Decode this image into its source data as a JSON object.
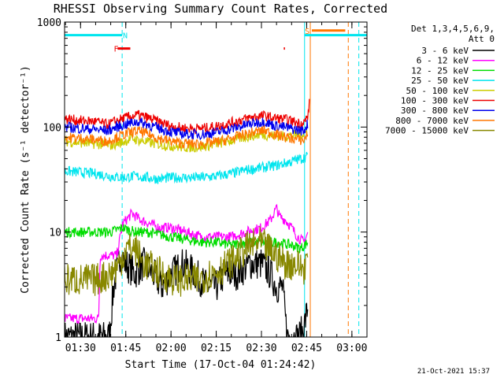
{
  "chart_data": {
    "type": "line",
    "title": "RHESSI Observing Summary Count Rates, Corrected",
    "xlabel": "Start Time (17-Oct-04 01:24:42)",
    "ylabel": "Corrected Count Rate (s⁻¹ detector⁻¹)",
    "ylog": true,
    "ylim": [
      1,
      1000
    ],
    "xlim_minutes": [
      84.7,
      185
    ],
    "x_ticks": [
      {
        "m": 90,
        "label": "01:30"
      },
      {
        "m": 105,
        "label": "01:45"
      },
      {
        "m": 120,
        "label": "02:00"
      },
      {
        "m": 135,
        "label": "02:15"
      },
      {
        "m": 150,
        "label": "02:30"
      },
      {
        "m": 165,
        "label": "02:45"
      },
      {
        "m": 180,
        "label": "03:00"
      }
    ],
    "y_ticks": [
      {
        "v": 1,
        "label": "1"
      },
      {
        "v": 10,
        "label": "10"
      },
      {
        "v": 100,
        "label": "100"
      },
      {
        "v": 1000,
        "label": "1000"
      }
    ],
    "legend_header": [
      "Det 1,3,4,5,6,9,",
      "Att 0"
    ],
    "legend_position": "right",
    "series": [
      {
        "name": "3 - 6 keV",
        "color": "#000000",
        "points": [
          [
            84.7,
            1
          ],
          [
            99.5,
            1
          ],
          [
            101,
            3
          ],
          [
            103,
            6
          ],
          [
            105,
            5
          ],
          [
            108,
            4
          ],
          [
            111,
            5
          ],
          [
            114,
            4
          ],
          [
            117,
            3
          ],
          [
            120,
            4
          ],
          [
            124,
            5
          ],
          [
            128,
            4
          ],
          [
            132,
            3
          ],
          [
            135,
            3
          ],
          [
            138,
            4
          ],
          [
            142,
            4
          ],
          [
            146,
            5
          ],
          [
            150,
            5
          ],
          [
            153,
            4
          ],
          [
            155,
            3
          ],
          [
            157,
            3
          ],
          [
            158.5,
            1
          ],
          [
            162.3,
            1
          ],
          [
            164,
            1.2
          ],
          [
            165.5,
            2
          ]
        ]
      },
      {
        "name": "6 - 12 keV",
        "color": "#ff00ff",
        "points": [
          [
            84.7,
            1.5
          ],
          [
            96,
            1.5
          ],
          [
            96.5,
            6
          ],
          [
            102,
            6
          ],
          [
            104,
            12
          ],
          [
            107,
            15
          ],
          [
            110,
            13
          ],
          [
            113,
            12
          ],
          [
            116,
            11
          ],
          [
            120,
            11
          ],
          [
            125,
            10
          ],
          [
            130,
            9
          ],
          [
            135,
            9
          ],
          [
            140,
            9
          ],
          [
            145,
            10
          ],
          [
            150,
            11
          ],
          [
            153,
            13
          ],
          [
            155,
            17
          ],
          [
            156,
            14
          ],
          [
            158,
            13
          ],
          [
            160,
            11
          ],
          [
            162,
            9
          ],
          [
            164,
            8
          ],
          [
            165.5,
            10
          ]
        ]
      },
      {
        "name": "12 - 25 keV",
        "color": "#00dd00",
        "points": [
          [
            84.7,
            10
          ],
          [
            90,
            10
          ],
          [
            95,
            10
          ],
          [
            100,
            10
          ],
          [
            104,
            11
          ],
          [
            108,
            10
          ],
          [
            112,
            10
          ],
          [
            116,
            9.5
          ],
          [
            120,
            9
          ],
          [
            125,
            8.5
          ],
          [
            130,
            8
          ],
          [
            135,
            8
          ],
          [
            140,
            7.5
          ],
          [
            145,
            8
          ],
          [
            150,
            8
          ],
          [
            155,
            8
          ],
          [
            160,
            7.5
          ],
          [
            163,
            7
          ],
          [
            165.5,
            8
          ]
        ]
      },
      {
        "name": "25 - 50 keV",
        "color": "#00e5ee",
        "points": [
          [
            84.7,
            38
          ],
          [
            90,
            37
          ],
          [
            95,
            36
          ],
          [
            100,
            34
          ],
          [
            104,
            33
          ],
          [
            108,
            34
          ],
          [
            112,
            33
          ],
          [
            116,
            32
          ],
          [
            120,
            33
          ],
          [
            125,
            33
          ],
          [
            130,
            33
          ],
          [
            135,
            34
          ],
          [
            140,
            36
          ],
          [
            145,
            39
          ],
          [
            150,
            41
          ],
          [
            155,
            43
          ],
          [
            160,
            47
          ],
          [
            164,
            51
          ],
          [
            165.5,
            53
          ]
        ]
      },
      {
        "name": "50 - 100 keV",
        "color": "#cccc00",
        "points": [
          [
            84.7,
            73
          ],
          [
            90,
            71
          ],
          [
            95,
            69
          ],
          [
            100,
            67
          ],
          [
            104,
            72
          ],
          [
            107,
            78
          ],
          [
            110,
            74
          ],
          [
            114,
            70
          ],
          [
            118,
            67
          ],
          [
            122,
            65
          ],
          [
            126,
            64
          ],
          [
            130,
            65
          ],
          [
            134,
            68
          ],
          [
            138,
            72
          ],
          [
            142,
            77
          ],
          [
            146,
            82
          ],
          [
            150,
            85
          ],
          [
            153,
            83
          ],
          [
            157,
            82
          ],
          [
            161,
            83
          ],
          [
            164,
            86
          ],
          [
            165.5,
            92
          ]
        ]
      },
      {
        "name": "100 - 300 keV",
        "color": "#ee0000",
        "points": [
          [
            84.7,
            120
          ],
          [
            90,
            115
          ],
          [
            95,
            113
          ],
          [
            99,
            105
          ],
          [
            102,
            115
          ],
          [
            106,
            125
          ],
          [
            109,
            130
          ],
          [
            112,
            123
          ],
          [
            116,
            112
          ],
          [
            120,
            102
          ],
          [
            124,
            98
          ],
          [
            128,
            97
          ],
          [
            132,
            98
          ],
          [
            136,
            103
          ],
          [
            140,
            110
          ],
          [
            144,
            118
          ],
          [
            148,
            126
          ],
          [
            151,
            128
          ],
          [
            154,
            122
          ],
          [
            158,
            118
          ],
          [
            162,
            110
          ],
          [
            164,
            108
          ],
          [
            165.5,
            130
          ],
          [
            166,
            180
          ]
        ]
      },
      {
        "name": "300 - 800 keV",
        "color": "#0000ee",
        "points": [
          [
            84.7,
            100
          ],
          [
            90,
            97
          ],
          [
            95,
            95
          ],
          [
            99,
            92
          ],
          [
            102,
            100
          ],
          [
            106,
            108
          ],
          [
            109,
            113
          ],
          [
            112,
            106
          ],
          [
            116,
            97
          ],
          [
            120,
            90
          ],
          [
            124,
            86
          ],
          [
            128,
            85
          ],
          [
            132,
            86
          ],
          [
            136,
            90
          ],
          [
            140,
            96
          ],
          [
            144,
            103
          ],
          [
            148,
            110
          ],
          [
            151,
            113
          ],
          [
            154,
            104
          ],
          [
            158,
            99
          ],
          [
            162,
            94
          ],
          [
            164,
            92
          ],
          [
            165.5,
            110
          ]
        ]
      },
      {
        "name": "800 - 7000 keV",
        "color": "#ff7700",
        "points": [
          [
            84.7,
            80
          ],
          [
            90,
            78
          ],
          [
            95,
            76
          ],
          [
            99,
            73
          ],
          [
            102,
            80
          ],
          [
            106,
            88
          ],
          [
            109,
            92
          ],
          [
            112,
            86
          ],
          [
            116,
            78
          ],
          [
            120,
            73
          ],
          [
            124,
            70
          ],
          [
            128,
            69
          ],
          [
            132,
            70
          ],
          [
            136,
            73
          ],
          [
            140,
            78
          ],
          [
            144,
            84
          ],
          [
            148,
            90
          ],
          [
            151,
            93
          ],
          [
            154,
            86
          ],
          [
            158,
            80
          ],
          [
            162,
            76
          ],
          [
            164,
            74
          ],
          [
            165.5,
            90
          ]
        ]
      },
      {
        "name": "7000 - 15000 keV",
        "color": "#888800",
        "points": [
          [
            84.7,
            3.5
          ],
          [
            90,
            3.5
          ],
          [
            95,
            3.5
          ],
          [
            100,
            4
          ],
          [
            103,
            5
          ],
          [
            105,
            7
          ],
          [
            108,
            7
          ],
          [
            111,
            5
          ],
          [
            114,
            4.5
          ],
          [
            117,
            4
          ],
          [
            121,
            3.5
          ],
          [
            125,
            3.5
          ],
          [
            129,
            3.5
          ],
          [
            133,
            4
          ],
          [
            137,
            4.5
          ],
          [
            141,
            5.5
          ],
          [
            145,
            7
          ],
          [
            149,
            8
          ],
          [
            152,
            7
          ],
          [
            155,
            6
          ],
          [
            158,
            5
          ],
          [
            161,
            5
          ],
          [
            164,
            4.5
          ],
          [
            165.5,
            6
          ]
        ]
      }
    ],
    "flags": [
      {
        "name": "F",
        "color": "#ee0000",
        "level": 560,
        "segments": [
          [
            102.3,
            106.5
          ],
          [
            157.4,
            157.8
          ]
        ],
        "label_at": 101.8
      },
      {
        "name": "N",
        "color": "#00e5ee",
        "level": 750,
        "segments": [
          [
            84.7,
            103.8
          ],
          [
            164.3,
            185
          ]
        ],
        "label_at": 104.8
      },
      {
        "name": "S",
        "color": "#ff7700",
        "level": 830,
        "segments": [
          [
            166.7,
            177.8
          ]
        ],
        "label_at": 165.2
      }
    ],
    "vertical_markers": [
      {
        "m": 103.8,
        "color": "#00e5ee",
        "style": "dashed"
      },
      {
        "m": 164.3,
        "color": "#00e5ee",
        "style": "solid"
      },
      {
        "m": 166.2,
        "color": "#ff7700",
        "style": "solid"
      },
      {
        "m": 178.8,
        "color": "#ff7700",
        "style": "dashed"
      },
      {
        "m": 182.3,
        "color": "#00e5ee",
        "style": "dashed"
      }
    ]
  },
  "footer": {
    "date_stamp": "21-Oct-2021 15:37"
  }
}
